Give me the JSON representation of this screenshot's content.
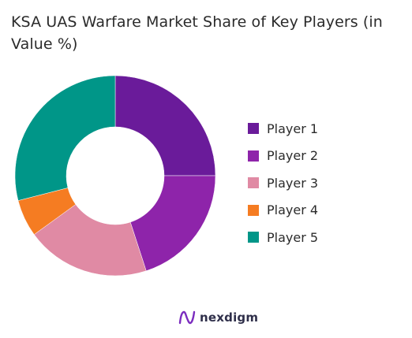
{
  "chart_data": {
    "type": "pie",
    "title": "KSA UAS Warfare Market Share of Key Players (in Value %)",
    "categories": [
      "Player 1",
      "Player 2",
      "Player 3",
      "Player 4",
      "Player 5"
    ],
    "values": [
      25,
      20,
      20,
      6,
      29
    ],
    "colors": [
      "#6a1b9a",
      "#8e24aa",
      "#e08aa4",
      "#f57c22",
      "#009688"
    ],
    "legend_position": "right"
  },
  "brand": {
    "name": "nexdigm",
    "color": "#7b2cbf"
  }
}
